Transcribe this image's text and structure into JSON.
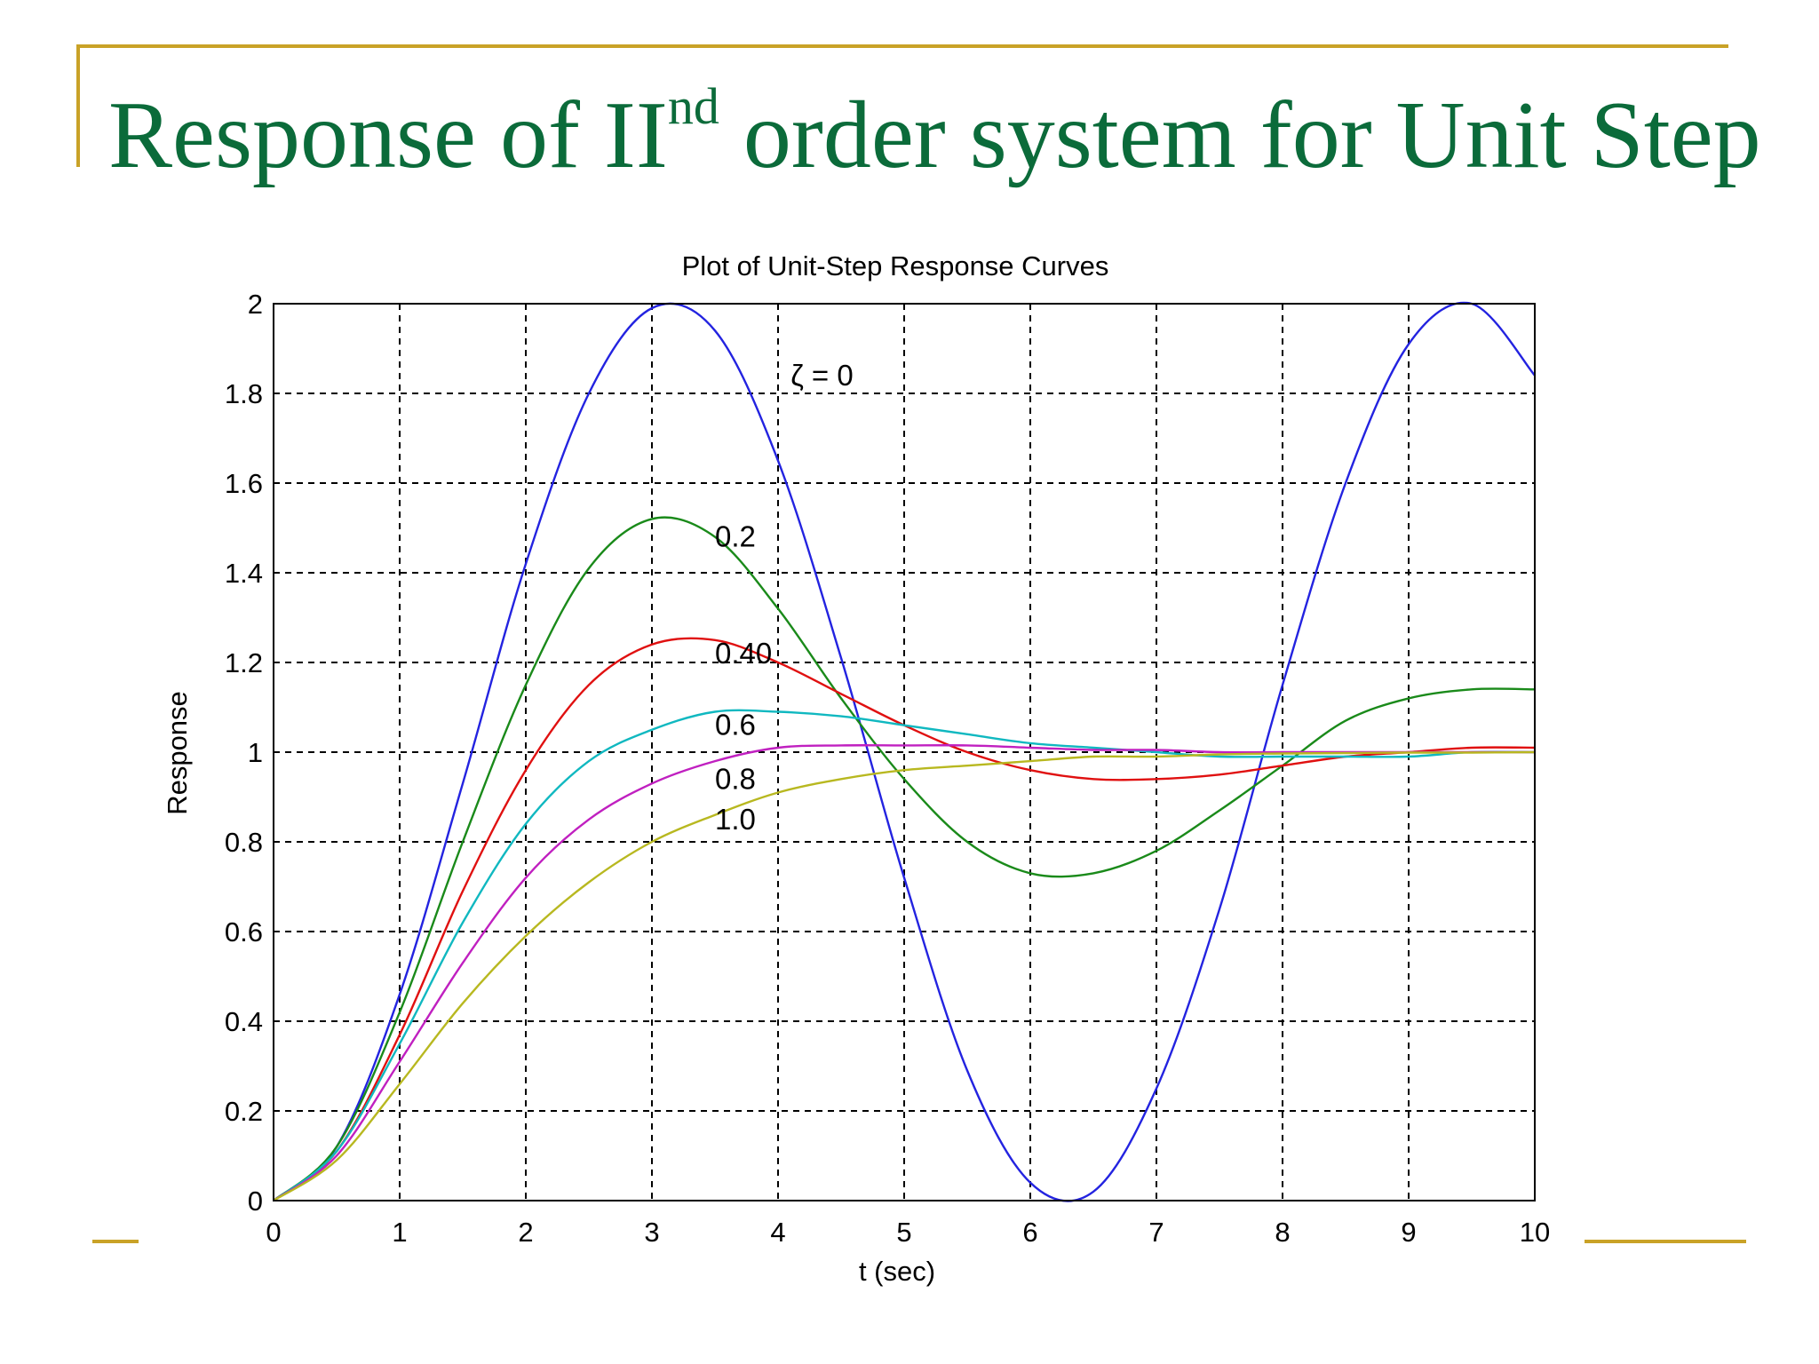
{
  "slide": {
    "title_prefix": "Response of II",
    "title_superscript": "nd",
    "title_suffix": " order system for Unit Step",
    "title_color": "#0b6b3a",
    "accent_color": "#c9a227"
  },
  "chart_data": {
    "type": "line",
    "title": "Plot of Unit-Step Response Curves",
    "xlabel": "t (sec)",
    "ylabel": "Response",
    "xlim": [
      0,
      10
    ],
    "ylim": [
      0,
      2
    ],
    "xticks": [
      "0",
      "1",
      "2",
      "3",
      "4",
      "5",
      "6",
      "7",
      "8",
      "9",
      "10"
    ],
    "yticks": [
      "0",
      "0.2",
      "0.4",
      "0.6",
      "0.8",
      "1",
      "1.2",
      "1.4",
      "1.6",
      "1.8",
      "2"
    ],
    "grid": true,
    "grid_style": "dashed",
    "x": [
      0,
      0.5,
      1,
      1.5,
      2,
      2.5,
      3,
      3.5,
      4,
      4.5,
      5,
      5.5,
      6,
      6.5,
      7,
      7.5,
      8,
      8.5,
      9,
      9.5,
      10
    ],
    "series": [
      {
        "label": "ζ = 0",
        "color": "#2323e0",
        "values": [
          0,
          0.12,
          0.46,
          0.93,
          1.42,
          1.8,
          1.99,
          1.94,
          1.65,
          1.21,
          0.72,
          0.29,
          0.04,
          0.02,
          0.25,
          0.65,
          1.15,
          1.6,
          1.91,
          2.0,
          1.84
        ]
      },
      {
        "label": "0.2",
        "color": "#1a8a1a",
        "values": [
          0,
          0.12,
          0.42,
          0.8,
          1.15,
          1.41,
          1.52,
          1.48,
          1.32,
          1.12,
          0.94,
          0.8,
          0.73,
          0.73,
          0.78,
          0.87,
          0.97,
          1.07,
          1.12,
          1.14,
          1.14
        ]
      },
      {
        "label": "0.40",
        "color": "#e01010",
        "values": [
          0,
          0.11,
          0.37,
          0.69,
          0.96,
          1.15,
          1.24,
          1.25,
          1.2,
          1.13,
          1.06,
          1.0,
          0.96,
          0.94,
          0.94,
          0.95,
          0.97,
          0.99,
          1.0,
          1.01,
          1.01
        ]
      },
      {
        "label": "0.6",
        "color": "#10b8c0",
        "values": [
          0,
          0.11,
          0.35,
          0.62,
          0.84,
          0.98,
          1.05,
          1.09,
          1.09,
          1.08,
          1.06,
          1.04,
          1.02,
          1.01,
          1.0,
          0.99,
          0.99,
          0.99,
          0.99,
          1.0,
          1.0
        ]
      },
      {
        "label": "0.8",
        "color": "#c020c0",
        "values": [
          0,
          0.1,
          0.31,
          0.53,
          0.72,
          0.85,
          0.93,
          0.98,
          1.01,
          1.015,
          1.015,
          1.015,
          1.01,
          1.005,
          1.005,
          1.0,
          1.0,
          1.0,
          1.0,
          1.0,
          1.0
        ]
      },
      {
        "label": "1.0",
        "color": "#b8b820",
        "values": [
          0,
          0.09,
          0.26,
          0.44,
          0.59,
          0.71,
          0.8,
          0.86,
          0.91,
          0.94,
          0.96,
          0.97,
          0.98,
          0.99,
          0.99,
          0.995,
          0.997,
          0.998,
          0.999,
          0.999,
          1.0
        ]
      }
    ],
    "annotations": [
      {
        "text": "ζ = 0",
        "x": 4.1,
        "y": 1.84
      },
      {
        "text": "0.2",
        "x": 3.5,
        "y": 1.48
      },
      {
        "text": "0.40",
        "x": 3.5,
        "y": 1.22
      },
      {
        "text": "0.6",
        "x": 3.5,
        "y": 1.06
      },
      {
        "text": "0.8",
        "x": 3.5,
        "y": 0.94
      },
      {
        "text": "1.0",
        "x": 3.5,
        "y": 0.85
      }
    ]
  }
}
